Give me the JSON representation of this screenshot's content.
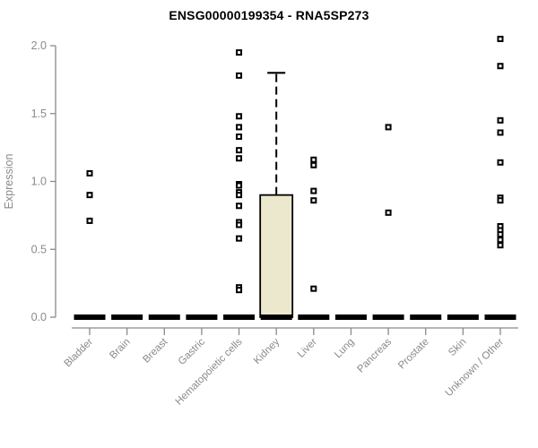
{
  "title": "ENSG00000199354 - RNA5SP273",
  "chart_data": {
    "type": "box",
    "title": "ENSG00000199354 - RNA5SP273",
    "xlabel": "",
    "ylabel": "Expression",
    "ylim": [
      0.0,
      2.0
    ],
    "yticks": [
      "0.0",
      "0.5",
      "1.0",
      "1.5",
      "2.0"
    ],
    "grid": false,
    "legend": null,
    "categories": [
      "Bladder",
      "Brain",
      "Breast",
      "Gastric",
      "Hematopoietic cells",
      "Kidney",
      "Liver",
      "Lung",
      "Pancreas",
      "Prostate",
      "Skin",
      "Unknown / Other"
    ],
    "series": [
      {
        "category": "Bladder",
        "median": 0.0,
        "box": null,
        "points": [
          1.06,
          0.9,
          0.71
        ]
      },
      {
        "category": "Brain",
        "median": 0.0,
        "box": null,
        "points": []
      },
      {
        "category": "Breast",
        "median": 0.0,
        "box": null,
        "points": []
      },
      {
        "category": "Gastric",
        "median": 0.0,
        "box": null,
        "points": []
      },
      {
        "category": "Hematopoietic cells",
        "median": 0.0,
        "box": null,
        "points": [
          1.95,
          1.78,
          1.48,
          1.4,
          1.33,
          1.23,
          1.17,
          0.98,
          0.97,
          0.92,
          0.9,
          0.82,
          0.7,
          0.68,
          0.58,
          0.22,
          0.2
        ]
      },
      {
        "category": "Kidney",
        "median": 0.0,
        "box": {
          "q1": 0.0,
          "median": 0.0,
          "q3": 0.9,
          "whisker_low": 0.0,
          "whisker_high": 1.8
        },
        "points": []
      },
      {
        "category": "Liver",
        "median": 0.0,
        "box": null,
        "points": [
          1.16,
          1.12,
          0.93,
          0.86,
          0.21
        ]
      },
      {
        "category": "Lung",
        "median": 0.0,
        "box": null,
        "points": []
      },
      {
        "category": "Pancreas",
        "median": 0.0,
        "box": null,
        "points": [
          1.4,
          0.77
        ]
      },
      {
        "category": "Prostate",
        "median": 0.0,
        "box": null,
        "points": []
      },
      {
        "category": "Skin",
        "median": 0.0,
        "box": null,
        "points": []
      },
      {
        "category": "Unknown / Other",
        "median": 0.0,
        "box": null,
        "points": [
          2.05,
          1.85,
          1.45,
          1.36,
          1.14,
          0.88,
          0.86,
          0.67,
          0.64,
          0.61,
          0.57,
          0.53
        ]
      }
    ],
    "colors": {
      "box_fill": "#ECE8CD",
      "box_border": "#000000",
      "median": "#000000",
      "whisker": "#000000",
      "point_stroke": "#000000",
      "point_fill": "#FFFFFF",
      "axis": "#8A8A8A",
      "axis_text": "#8A8A8A",
      "title": "#000000",
      "background": "#FFFFFF"
    }
  }
}
